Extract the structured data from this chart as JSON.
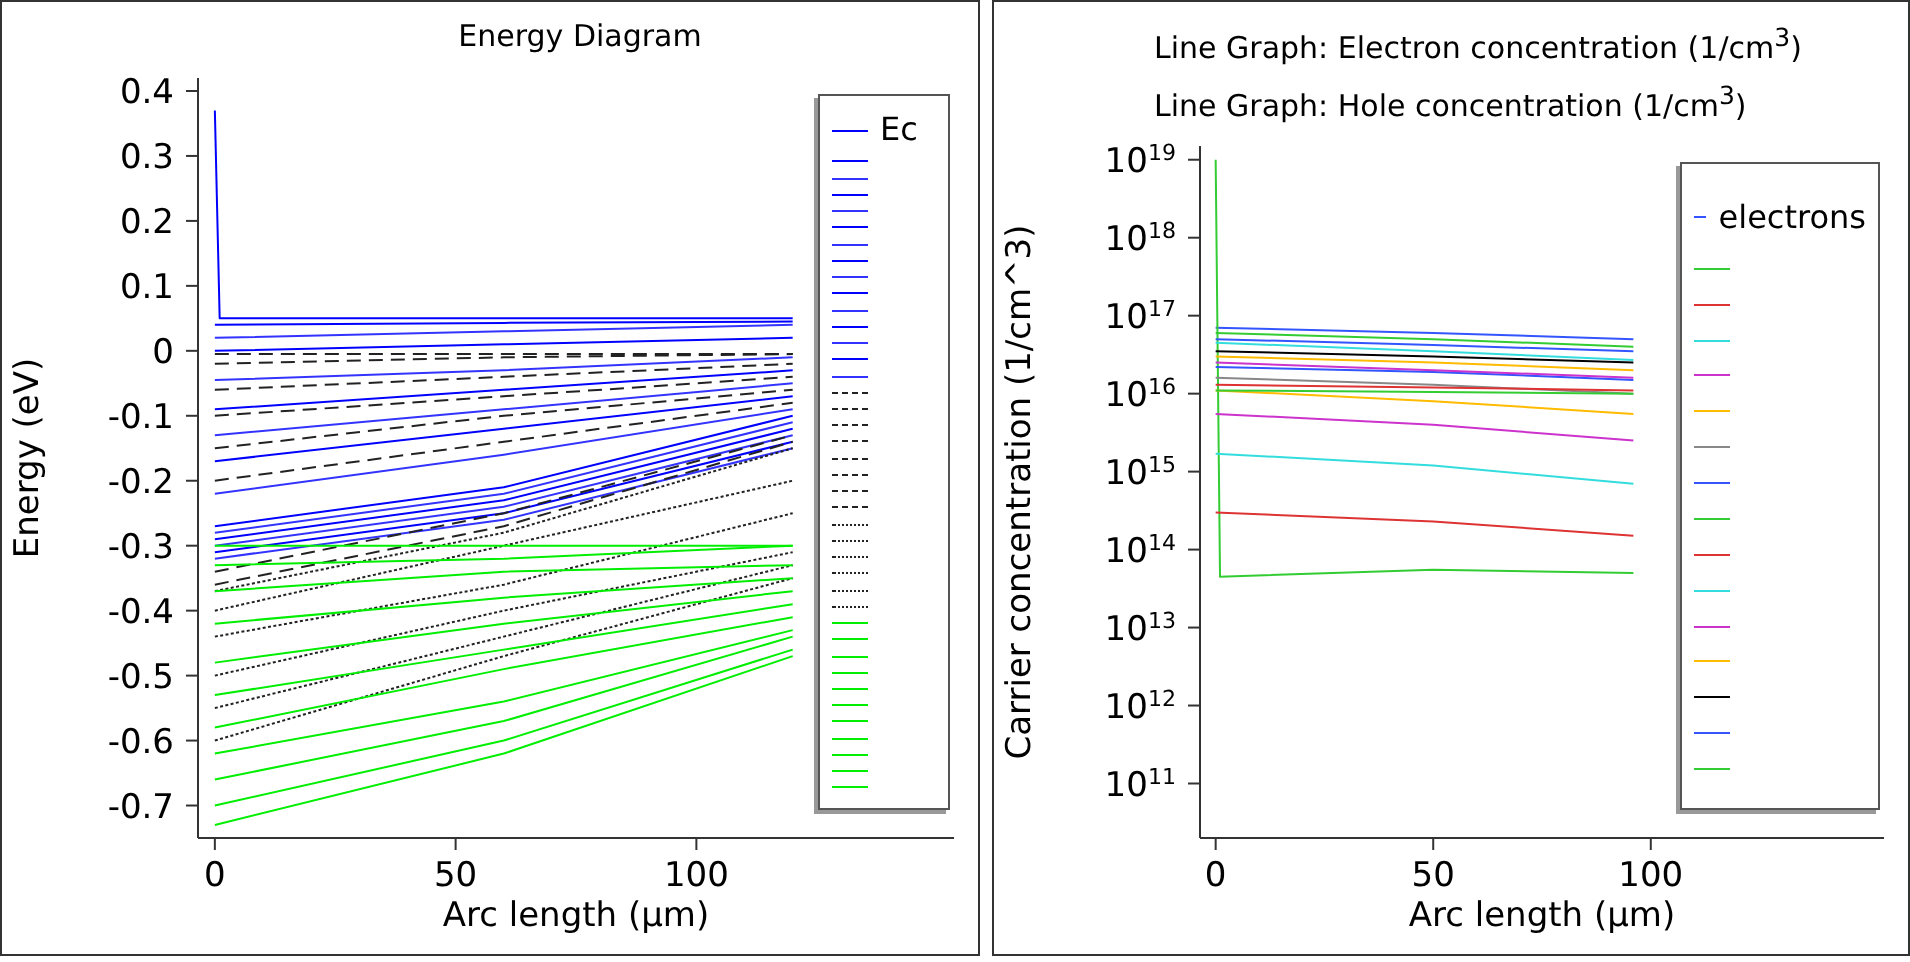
{
  "chart_data": [
    {
      "type": "line",
      "title": "Energy Diagram",
      "xlabel": "Arc length (µm)",
      "ylabel": "Energy (eV)",
      "xlim": [
        -3.5,
        153.5
      ],
      "xticks": [
        0,
        50,
        100
      ],
      "ylim": [
        -0.75,
        0.42
      ],
      "yticks": [
        0.4,
        0.3,
        0.2,
        0.1,
        0,
        -0.1,
        -0.2,
        -0.3,
        -0.4,
        -0.5,
        -0.6,
        -0.7
      ],
      "legend": "top right",
      "marker": "none",
      "series": [
        {
          "name": "Ec",
          "color": "#0000ff",
          "x": [
            0,
            1,
            60,
            120
          ],
          "values": [
            0.37,
            0.05,
            0.05,
            0.05
          ]
        },
        {
          "color": "#0000ff",
          "x": [
            0,
            60,
            120
          ],
          "values": [
            0.04,
            0.043,
            0.045
          ]
        },
        {
          "color": "#3333ff",
          "x": [
            0,
            60,
            120
          ],
          "values": [
            0.02,
            0.03,
            0.04
          ]
        },
        {
          "color": "#0000ff",
          "x": [
            0,
            60,
            120
          ],
          "values": [
            0,
            0.01,
            0.02
          ]
        },
        {
          "color": "#3333ff",
          "x": [
            0,
            60,
            120
          ],
          "values": [
            -0.045,
            -0.03,
            -0.01
          ]
        },
        {
          "color": "#0000ff",
          "x": [
            0,
            60,
            120
          ],
          "values": [
            -0.09,
            -0.06,
            -0.03
          ]
        },
        {
          "color": "#3333ff",
          "x": [
            0,
            60,
            120
          ],
          "values": [
            -0.13,
            -0.09,
            -0.05
          ]
        },
        {
          "color": "#0000ff",
          "x": [
            0,
            60,
            120
          ],
          "values": [
            -0.17,
            -0.12,
            -0.07
          ]
        },
        {
          "color": "#3333ff",
          "x": [
            0,
            60,
            120
          ],
          "values": [
            -0.22,
            -0.16,
            -0.09
          ]
        },
        {
          "color": "#0000ff",
          "x": [
            0,
            60,
            120
          ],
          "values": [
            -0.27,
            -0.21,
            -0.1
          ]
        },
        {
          "color": "#3333ff",
          "x": [
            0,
            60,
            120
          ],
          "values": [
            -0.28,
            -0.22,
            -0.11
          ]
        },
        {
          "color": "#0000ff",
          "x": [
            0,
            60,
            120
          ],
          "values": [
            -0.29,
            -0.23,
            -0.12
          ]
        },
        {
          "color": "#3333ff",
          "x": [
            0,
            60,
            120
          ],
          "values": [
            -0.3,
            -0.24,
            -0.13
          ]
        },
        {
          "color": "#0000ff",
          "x": [
            0,
            60,
            120
          ],
          "values": [
            -0.31,
            -0.25,
            -0.14
          ]
        },
        {
          "color": "#3333ff",
          "x": [
            0,
            60,
            120
          ],
          "values": [
            -0.32,
            -0.26,
            -0.15
          ]
        },
        {
          "color": "#222222",
          "line_style": "dashed",
          "x": [
            0,
            60,
            120
          ],
          "values": [
            -0.005,
            -0.005,
            -0.005
          ]
        },
        {
          "color": "#222222",
          "line_style": "dashed",
          "x": [
            0,
            60,
            120
          ],
          "values": [
            -0.02,
            -0.01,
            -0.005
          ]
        },
        {
          "color": "#222222",
          "line_style": "dashed",
          "x": [
            0,
            60,
            120
          ],
          "values": [
            -0.06,
            -0.04,
            -0.02
          ]
        },
        {
          "color": "#222222",
          "line_style": "dashed",
          "x": [
            0,
            60,
            120
          ],
          "values": [
            -0.1,
            -0.07,
            -0.04
          ]
        },
        {
          "color": "#222222",
          "line_style": "dashed",
          "x": [
            0,
            60,
            120
          ],
          "values": [
            -0.15,
            -0.1,
            -0.06
          ]
        },
        {
          "color": "#222222",
          "line_style": "dashed",
          "x": [
            0,
            60,
            120
          ],
          "values": [
            -0.2,
            -0.14,
            -0.08
          ]
        },
        {
          "color": "#222222",
          "line_style": "dashed",
          "x": [
            0,
            60,
            120
          ],
          "values": [
            -0.34,
            -0.25,
            -0.13
          ]
        },
        {
          "color": "#222222",
          "line_style": "dashed",
          "x": [
            0,
            60,
            120
          ],
          "values": [
            -0.36,
            -0.27,
            -0.14
          ]
        },
        {
          "color": "#222222",
          "line_style": "dotted",
          "x": [
            0,
            60,
            120
          ],
          "values": [
            -0.37,
            -0.28,
            -0.15
          ]
        },
        {
          "color": "#222222",
          "line_style": "dotted",
          "x": [
            0,
            60,
            120
          ],
          "values": [
            -0.4,
            -0.3,
            -0.2
          ]
        },
        {
          "color": "#222222",
          "line_style": "dotted",
          "x": [
            0,
            60,
            120
          ],
          "values": [
            -0.44,
            -0.36,
            -0.25
          ]
        },
        {
          "color": "#222222",
          "line_style": "dotted",
          "x": [
            0,
            60,
            120
          ],
          "values": [
            -0.5,
            -0.4,
            -0.31
          ]
        },
        {
          "color": "#222222",
          "line_style": "dotted",
          "x": [
            0,
            60,
            120
          ],
          "values": [
            -0.55,
            -0.44,
            -0.33
          ]
        },
        {
          "color": "#222222",
          "line_style": "dotted",
          "x": [
            0,
            60,
            120
          ],
          "values": [
            -0.6,
            -0.47,
            -0.35
          ]
        },
        {
          "color": "#00ee00",
          "x": [
            0,
            60,
            120
          ],
          "values": [
            -0.3,
            -0.3,
            -0.3
          ]
        },
        {
          "color": "#00ee00",
          "x": [
            0,
            60,
            120
          ],
          "values": [
            -0.33,
            -0.32,
            -0.3
          ]
        },
        {
          "color": "#00ee00",
          "x": [
            0,
            60,
            120
          ],
          "values": [
            -0.37,
            -0.34,
            -0.33
          ]
        },
        {
          "color": "#00ee00",
          "x": [
            0,
            60,
            120
          ],
          "values": [
            -0.42,
            -0.38,
            -0.35
          ]
        },
        {
          "color": "#00ee00",
          "x": [
            0,
            60,
            120
          ],
          "values": [
            -0.48,
            -0.42,
            -0.37
          ]
        },
        {
          "color": "#00ee00",
          "x": [
            0,
            60,
            120
          ],
          "values": [
            -0.53,
            -0.46,
            -0.39
          ]
        },
        {
          "color": "#00ee00",
          "x": [
            0,
            60,
            120
          ],
          "values": [
            -0.58,
            -0.49,
            -0.41
          ]
        },
        {
          "color": "#00ee00",
          "x": [
            0,
            60,
            120
          ],
          "values": [
            -0.62,
            -0.54,
            -0.43
          ]
        },
        {
          "color": "#00ee00",
          "x": [
            0,
            60,
            120
          ],
          "values": [
            -0.66,
            -0.57,
            -0.44
          ]
        },
        {
          "color": "#00ee00",
          "x": [
            0,
            60,
            120
          ],
          "values": [
            -0.7,
            -0.6,
            -0.46
          ]
        },
        {
          "color": "#00ee00",
          "x": [
            0,
            60,
            120
          ],
          "values": [
            -0.73,
            -0.62,
            -0.47
          ]
        }
      ]
    },
    {
      "type": "line",
      "title": "Line Graph: Electron concentration (1/cm$^{3}$)",
      "subtitle": "Line Graph: Hole concentration (1/cm$^{3}$)",
      "xlabel": "Arc length (µm)",
      "ylabel": "Carrier concentration (1/cm^3)",
      "log": "y",
      "xlim": [
        -3.6,
        153.6
      ],
      "xticks": [
        0,
        50,
        100
      ],
      "ylim": [
        20000000000.0,
        1.5e+19
      ],
      "yticks": [
        {
          "value": 100000000000.0,
          "label": "10$^{11}$"
        },
        {
          "value": 1000000000000.0,
          "label": "10$^{12}$"
        },
        {
          "value": 10000000000000.0,
          "label": "10$^{13}$"
        },
        {
          "value": 100000000000000.0,
          "label": "10$^{14}$"
        },
        {
          "value": 1000000000000000.0,
          "label": "10$^{15}$"
        },
        {
          "value": 1e+16,
          "label": "10$^{16}$"
        },
        {
          "value": 1e+17,
          "label": "10$^{17}$"
        },
        {
          "value": 1e+18,
          "label": "10$^{18}$"
        },
        {
          "value": 1e+19,
          "label": "10$^{19}$"
        }
      ],
      "legend": "top right",
      "marker": "none",
      "series": [
        {
          "name": "electrons",
          "color": "#3355ff",
          "x": [
            0,
            50,
            96
          ],
          "values": [
            7e+16,
            6e+16,
            5e+16
          ]
        },
        {
          "color": "#33cc33",
          "x": [
            0,
            1,
            50,
            96
          ],
          "values": [
            1e+19,
            45000000000000.0,
            55000000000000.0,
            50000000000000.0
          ]
        },
        {
          "color": "#dd3333",
          "x": [
            0,
            50,
            96
          ],
          "values": [
            300000000000000.0,
            230000000000000.0,
            150000000000000.0
          ]
        },
        {
          "color": "#33dddd",
          "x": [
            0,
            50,
            96
          ],
          "values": [
            1700000000000000.0,
            1200000000000000.0,
            700000000000000.0
          ]
        },
        {
          "color": "#cc33cc",
          "x": [
            0,
            50,
            96
          ],
          "values": [
            5500000000000000.0,
            4000000000000000.0,
            2500000000000000.0
          ]
        },
        {
          "color": "#ffbb00",
          "x": [
            0,
            50,
            96
          ],
          "values": [
            1.1e+16,
            8000000000000000.0,
            5500000000000000.0
          ]
        },
        {
          "color": "#888888",
          "x": [
            0,
            50,
            96
          ],
          "values": [
            1.6e+16,
            1.3e+16,
            1e+16
          ]
        },
        {
          "color": "#3355ff",
          "x": [
            0,
            50,
            96
          ],
          "values": [
            2.2e+16,
            1.9e+16,
            1.5e+16
          ]
        },
        {
          "color": "#33cc33",
          "x": [
            0,
            50,
            96
          ],
          "values": [
            1.1e+16,
            1.05e+16,
            1e+16
          ]
        },
        {
          "color": "#dd3333",
          "x": [
            0,
            50,
            96
          ],
          "values": [
            1.3e+16,
            1.2e+16,
            1.1e+16
          ]
        },
        {
          "color": "#33dddd",
          "x": [
            0,
            50,
            96
          ],
          "values": [
            4.5e+16,
            3.5e+16,
            2.7e+16
          ]
        },
        {
          "color": "#cc33cc",
          "x": [
            0,
            50,
            96
          ],
          "values": [
            2.5e+16,
            2e+16,
            1.6e+16
          ]
        },
        {
          "color": "#ffbb00",
          "x": [
            0,
            50,
            96
          ],
          "values": [
            3e+16,
            2.5e+16,
            2e+16
          ]
        },
        {
          "color": "#000000",
          "x": [
            0,
            50,
            96
          ],
          "values": [
            3.5e+16,
            3e+16,
            2.5e+16
          ]
        },
        {
          "color": "#3355ff",
          "x": [
            0,
            50,
            96
          ],
          "values": [
            5e+16,
            4.2e+16,
            3.5e+16
          ]
        },
        {
          "color": "#33cc33",
          "x": [
            0,
            50,
            96
          ],
          "values": [
            6e+16,
            5e+16,
            4e+16
          ]
        }
      ]
    }
  ]
}
